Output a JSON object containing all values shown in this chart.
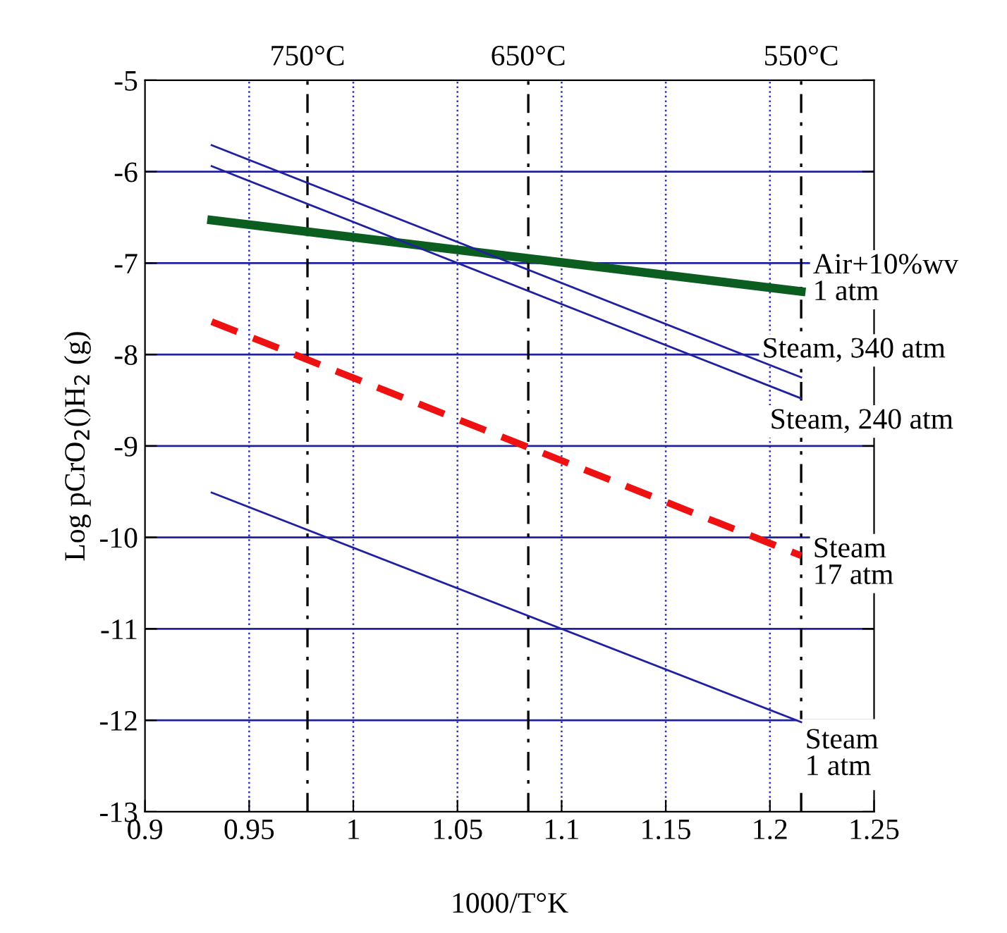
{
  "chart_data": {
    "type": "line",
    "xlabel": "1000/T°K",
    "ylabel": "Log pCrO$_{2}$()H$_{2}$ (g)",
    "xlim": [
      0.9,
      1.25
    ],
    "ylim": [
      -13,
      -5
    ],
    "xticks": [
      0.9,
      0.95,
      1,
      1.05,
      1.1,
      1.15,
      1.2,
      1.25
    ],
    "yticks": [
      -13,
      -12,
      -11,
      -10,
      -9,
      -8,
      -7,
      -6,
      -5
    ],
    "grid": true,
    "marker": "none",
    "x": [
      0.932,
      1.215
    ],
    "ref_lines": [
      {
        "axis": "x",
        "value": 0.978,
        "label": "750°C",
        "color": "#000000",
        "line_style": "dashdot"
      },
      {
        "axis": "x",
        "value": 1.084,
        "label": "650°C",
        "color": "#000000",
        "line_style": "dashdot"
      },
      {
        "axis": "x",
        "value": 1.215,
        "label": "550°C",
        "color": "#000000",
        "line_style": "dashdot"
      }
    ],
    "series": [
      {
        "name": "Air+10%wv\n1 atm",
        "color": "#0b5e1f",
        "values": [
          -6.53,
          -7.31
        ],
        "line_style": "solid"
      },
      {
        "name": "Steam, 340 atm",
        "color": "#2020a0",
        "values": [
          -5.71,
          -8.25
        ],
        "line_style": "solid"
      },
      {
        "name": "Steam, 240 atm",
        "color": "#2020a0",
        "values": [
          -5.94,
          -8.48
        ],
        "line_style": "solid"
      },
      {
        "name": "Steam\n17 atm",
        "color": "#ee1111",
        "values": [
          -7.64,
          -10.2
        ],
        "line_style": "dashed"
      },
      {
        "name": "Steam\n1 atm",
        "color": "#2020a0",
        "values": [
          -9.51,
          -12.02
        ],
        "line_style": "solid"
      }
    ]
  }
}
